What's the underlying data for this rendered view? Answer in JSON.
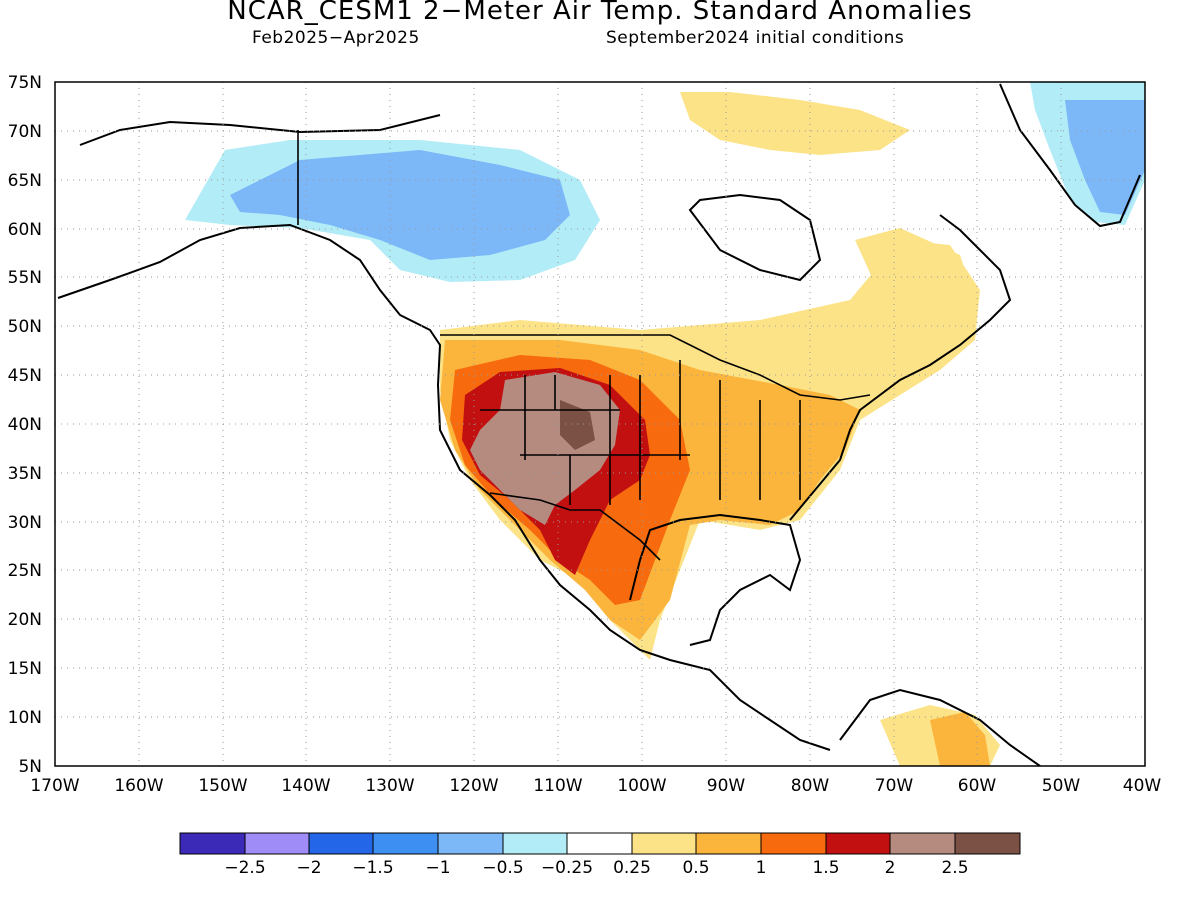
{
  "title": "NCAR_CESM1 2−Meter Air Temp. Standard Anomalies",
  "period": "Feb2025−Apr2025",
  "init": "September2024 initial conditions",
  "map": {
    "lat_labels": [
      "75N",
      "70N",
      "65N",
      "60N",
      "55N",
      "50N",
      "45N",
      "40N",
      "35N",
      "30N",
      "25N",
      "20N",
      "15N",
      "10N",
      "5N"
    ],
    "lon_labels": [
      "170W",
      "160W",
      "150W",
      "140W",
      "130W",
      "120W",
      "110W",
      "100W",
      "90W",
      "80W",
      "70W",
      "60W",
      "50W",
      "40W"
    ],
    "grid": "dotted"
  },
  "colorbar": {
    "colors": [
      "#3b2ab8",
      "#a08cf7",
      "#2366e8",
      "#3e8ff2",
      "#7cb7f7",
      "#b2ecf7",
      "#ffffff",
      "#fce388",
      "#fbb53c",
      "#f76a0d",
      "#c20f10",
      "#b58b7f",
      "#7b5145"
    ],
    "labels": [
      "−2.5",
      "−2",
      "−1.5",
      "−1",
      "−0.5",
      "−0.25",
      "0.25",
      "0.5",
      "1",
      "1.5",
      "2",
      "2.5"
    ]
  }
}
